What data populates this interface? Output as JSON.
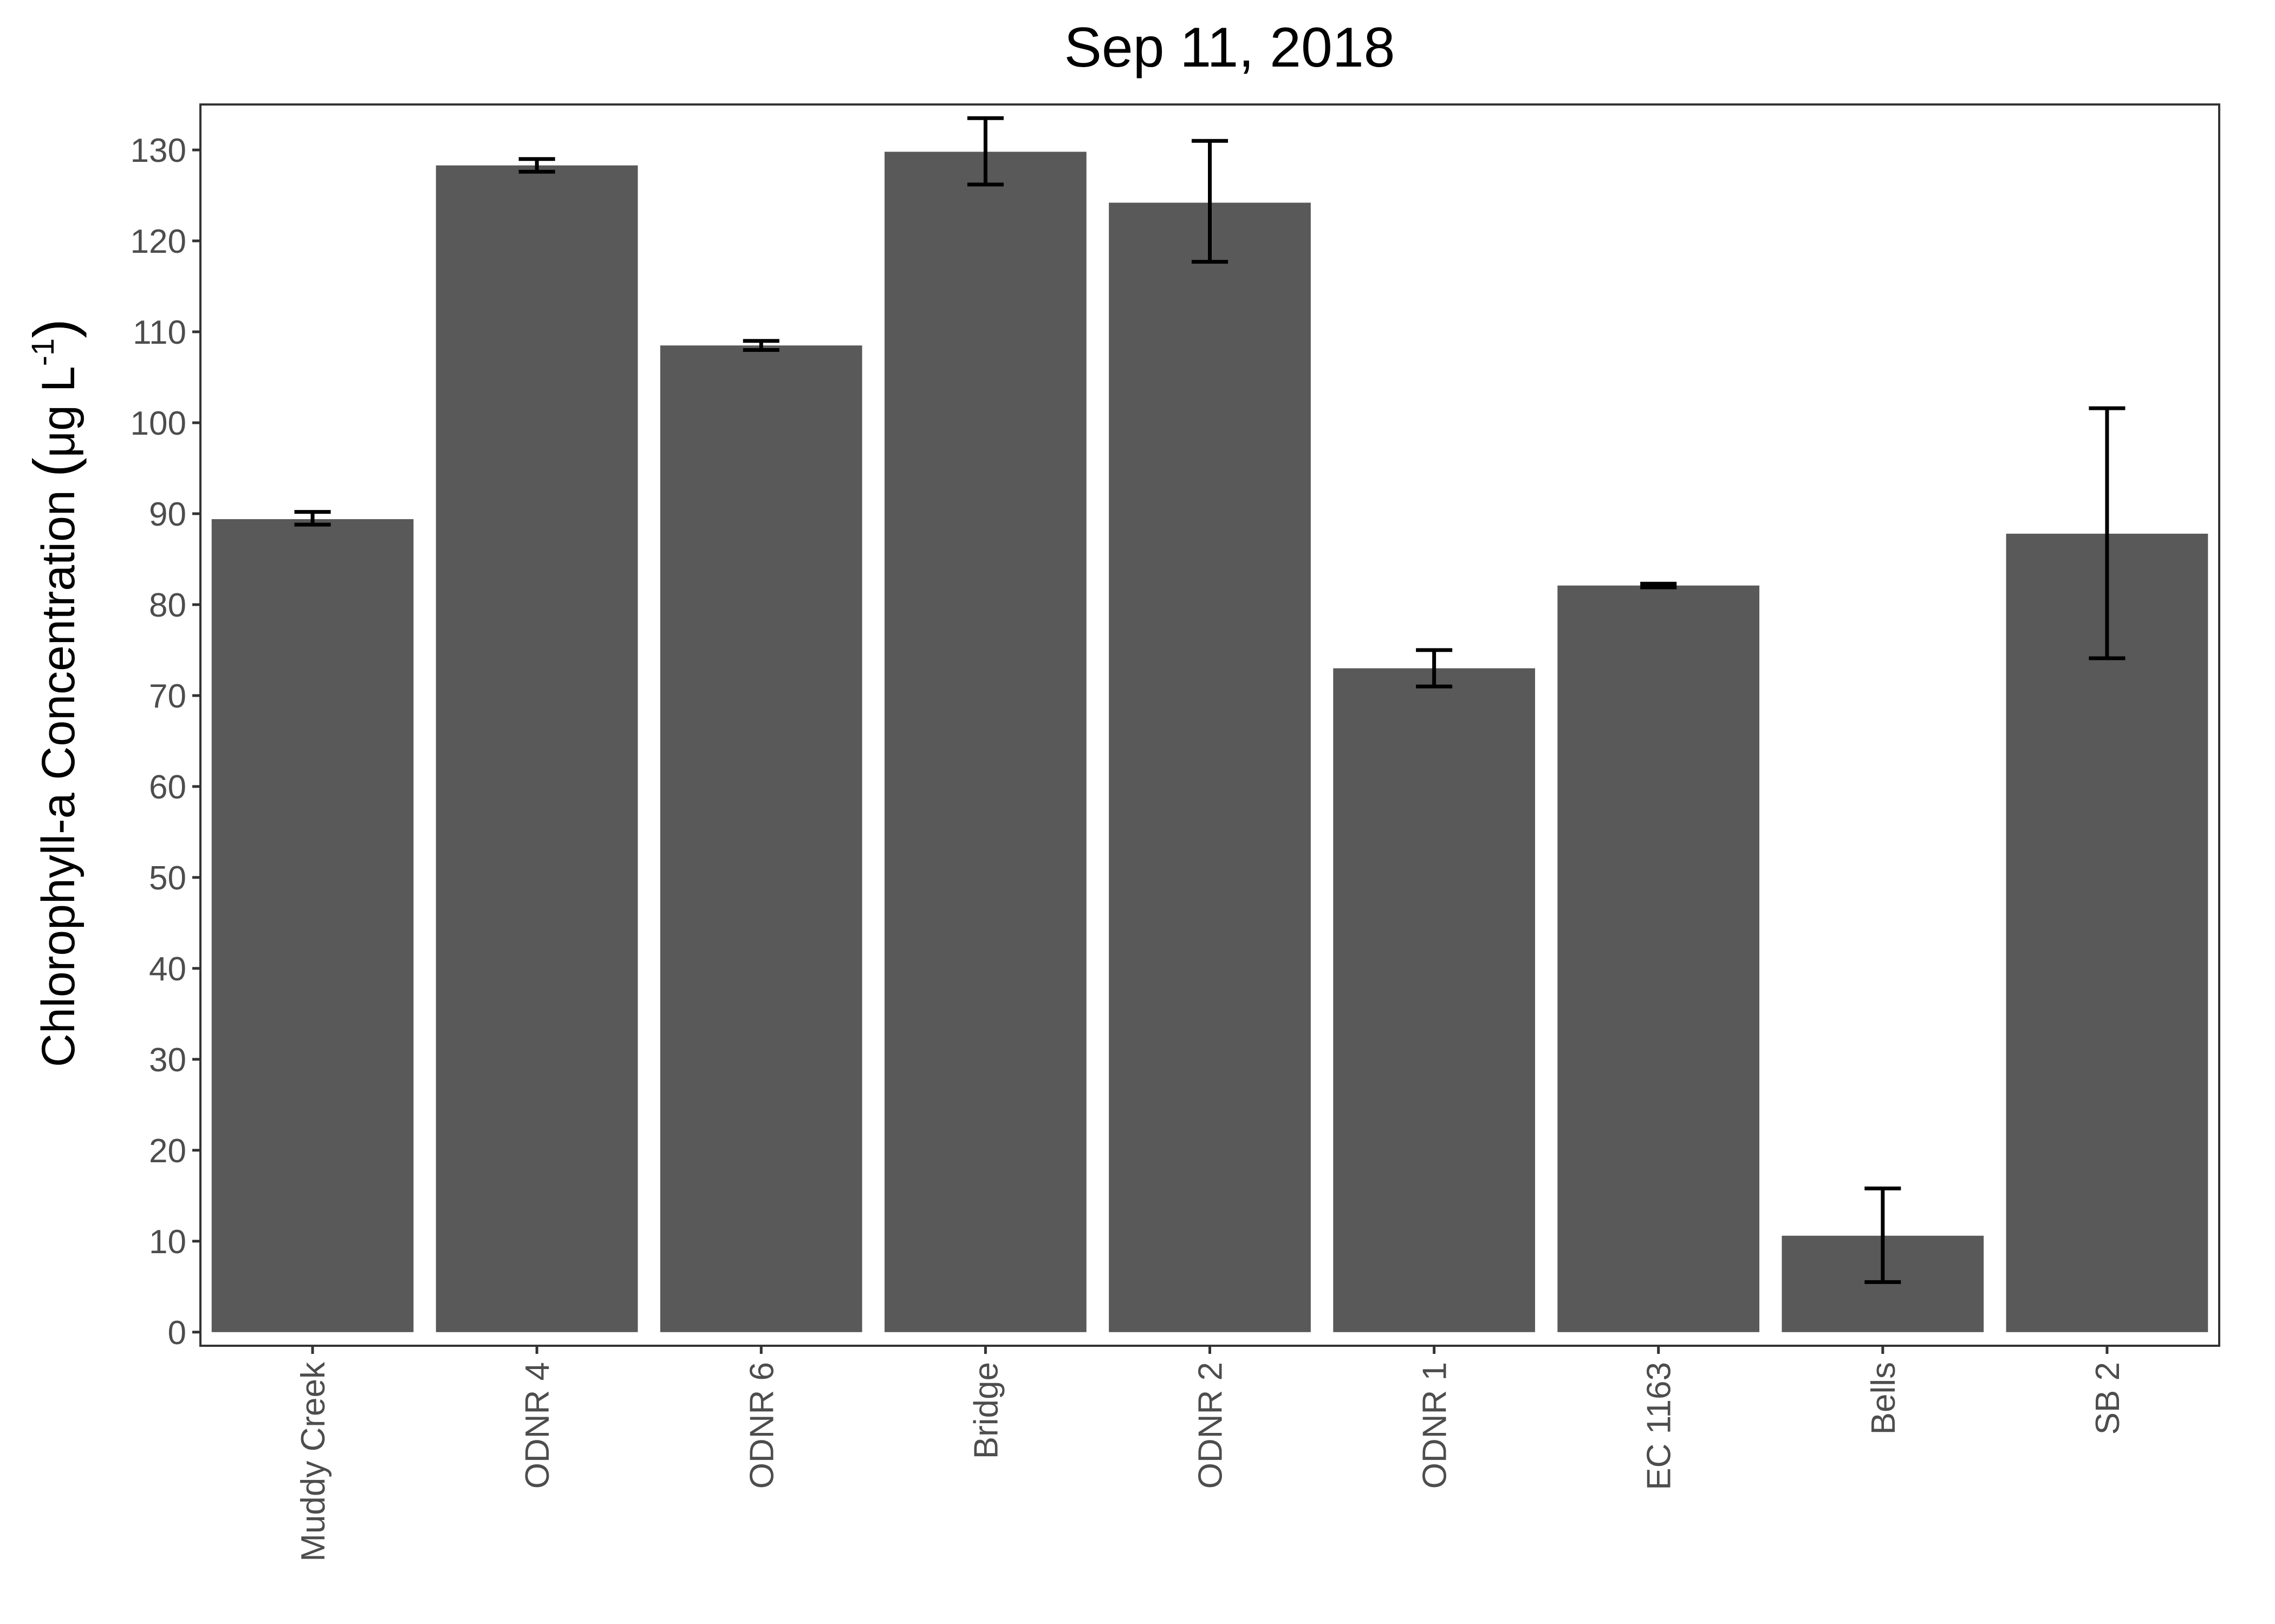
{
  "chart_data": {
    "type": "bar",
    "title": "Sep 11, 2018",
    "xlabel": "",
    "ylabel_parts": [
      "Chlorophyll-a Concentration ",
      "(",
      "μg L",
      "-1",
      ")"
    ],
    "ylim": [
      -1.5,
      135
    ],
    "yticks": [
      0,
      10,
      20,
      30,
      40,
      50,
      60,
      70,
      80,
      90,
      100,
      110,
      120,
      130
    ],
    "ytick_labels": [
      "0",
      "10",
      "20",
      "30",
      "40",
      "50",
      "60",
      "70",
      "80",
      "90",
      "100",
      "110",
      "120",
      "130"
    ],
    "categories": [
      "Muddy Creek",
      "ODNR 4",
      "ODNR 6",
      "Bridge",
      "ODNR 2",
      "ODNR 1",
      "EC 1163",
      "Bells",
      "SB 2"
    ],
    "values": [
      89.4,
      128.3,
      108.5,
      129.8,
      124.2,
      73.0,
      82.1,
      10.6,
      87.8
    ],
    "error_low": [
      88.8,
      127.6,
      108.0,
      126.2,
      117.7,
      71.0,
      81.9,
      5.5,
      74.1
    ],
    "error_high": [
      90.2,
      129.0,
      109.0,
      133.5,
      131.0,
      75.0,
      82.3,
      15.8,
      101.6
    ],
    "grid": false,
    "legend": "none",
    "colors": {
      "bar": "#595959",
      "errorbar": "#000000",
      "axis_text": "#4d4d4d",
      "border": "#333333"
    }
  }
}
